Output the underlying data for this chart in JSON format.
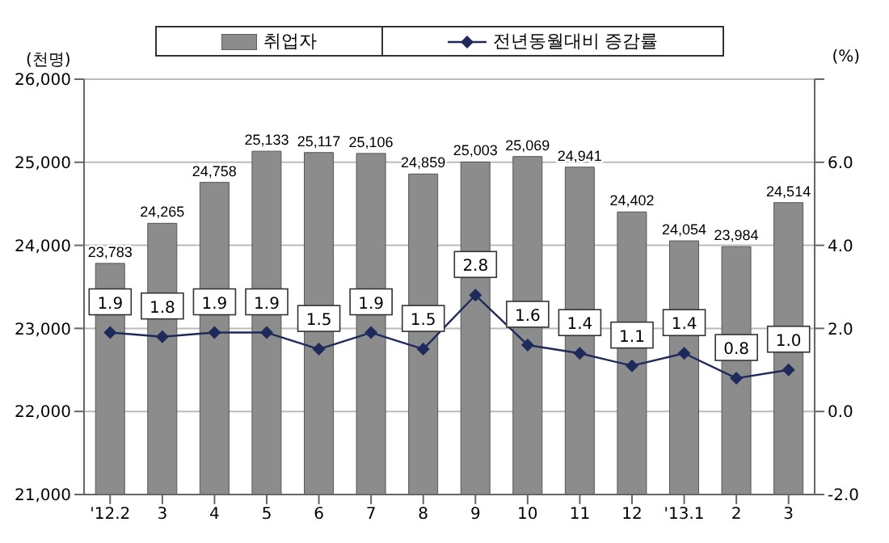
{
  "chart_data": {
    "type": "bar",
    "categories": [
      "'12.2",
      "3",
      "4",
      "5",
      "6",
      "7",
      "8",
      "9",
      "10",
      "11",
      "12",
      "'13.1",
      "2",
      "3"
    ],
    "series": [
      {
        "name": "취업자",
        "color": "#8c8c8c",
        "values": [
          23783,
          24265,
          24758,
          25133,
          25117,
          25106,
          24859,
          25003,
          25069,
          24941,
          24402,
          24054,
          23984,
          24514
        ],
        "value_labels": [
          "23,783",
          "24,265",
          "24,758",
          "25,133",
          "25,117",
          "25,106",
          "24,859",
          "25,003",
          "25,069",
          "24,941",
          "24,402",
          "24,054",
          "23,984",
          "24,514"
        ]
      },
      {
        "name": "전년동월대비 증감률",
        "type": "line",
        "axis": "y2",
        "color": "#1f2a5c",
        "values": [
          1.9,
          1.8,
          1.9,
          1.9,
          1.5,
          1.9,
          1.5,
          2.8,
          1.6,
          1.4,
          1.1,
          1.4,
          0.8,
          1.0
        ],
        "value_labels": [
          "1.9",
          "1.8",
          "1.9",
          "1.9",
          "1.5",
          "1.9",
          "1.5",
          "2.8",
          "1.6",
          "1.4",
          "1.1",
          "1.4",
          "0.8",
          "1.0"
        ]
      }
    ],
    "ylabel": "(천명)",
    "y2label": "(%)",
    "ylim": [
      21000,
      26000
    ],
    "yticks": [
      {
        "value": 21000,
        "label": "21,000"
      },
      {
        "value": 22000,
        "label": "22,000"
      },
      {
        "value": 23000,
        "label": "23,000"
      },
      {
        "value": 24000,
        "label": "24,000"
      },
      {
        "value": 25000,
        "label": "25,000"
      },
      {
        "value": 26000,
        "label": "26,000"
      }
    ],
    "y2lim": [
      -2,
      8
    ],
    "y2ticks": [
      {
        "value": -2,
        "label": "-2.0"
      },
      {
        "value": 0,
        "label": "0.0"
      },
      {
        "value": 2,
        "label": "2.0"
      },
      {
        "value": 4,
        "label": "4.0"
      },
      {
        "value": 6,
        "label": "6.0"
      },
      {
        "value": 8,
        "label": null
      }
    ],
    "grid": "y",
    "legend": "top",
    "marker": "diamond"
  }
}
